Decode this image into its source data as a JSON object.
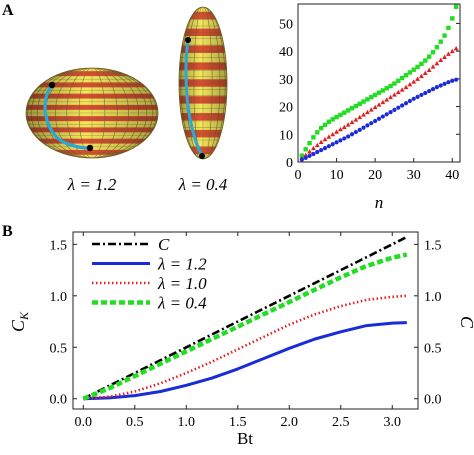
{
  "panels": {
    "a_label": "A",
    "b_label": "B"
  },
  "spheroids": [
    {
      "label": "λ = 1.2",
      "lambda": 1.2
    },
    {
      "label": "λ = 0.4",
      "lambda": 0.4
    }
  ],
  "colors": {
    "body_yellow": "#f2e65c",
    "stripe_red": "#d8342c",
    "path_cyan": "#2aa8d8",
    "series_green": "#22dd22",
    "series_red": "#e02020",
    "series_blue": "#1a2bd8",
    "series_black": "#000000"
  },
  "chart_data": [
    {
      "type": "scatter",
      "xlabel": "n",
      "ylabel": "",
      "xlim": [
        0,
        42
      ],
      "ylim": [
        0,
        57
      ],
      "xticks": [
        0,
        10,
        20,
        30,
        40
      ],
      "yticks": [
        0,
        10,
        20,
        30,
        40,
        50
      ],
      "grid": false,
      "x": [
        1,
        2,
        3,
        4,
        5,
        6,
        7,
        8,
        9,
        10,
        11,
        12,
        13,
        14,
        15,
        16,
        17,
        18,
        19,
        20,
        21,
        22,
        23,
        24,
        25,
        26,
        27,
        28,
        29,
        30,
        31,
        32,
        33,
        34,
        35,
        36,
        37,
        38,
        39,
        40,
        41
      ],
      "series": [
        {
          "color": "#22dd22",
          "values": [
            2.3,
            4.6,
            6.8,
            8.9,
            10.7,
            12.2,
            13.4,
            14.5,
            15.4,
            16.2,
            17.0,
            17.8,
            18.6,
            19.4,
            20.2,
            21.0,
            21.8,
            22.6,
            23.4,
            24.2,
            25.0,
            25.8,
            26.6,
            27.4,
            28.3,
            29.3,
            30.3,
            31.3,
            32.3,
            33.3,
            34.3,
            35.4,
            36.6,
            38.0,
            39.6,
            41.4,
            43.4,
            45.6,
            48.4,
            51.8,
            56.0
          ]
        },
        {
          "color": "#e02020",
          "values": [
            1.3,
            2.5,
            3.8,
            5.0,
            6.1,
            7.2,
            8.2,
            9.1,
            10.0,
            10.9,
            11.8,
            12.6,
            13.5,
            14.4,
            15.3,
            16.2,
            17.1,
            18.0,
            18.9,
            19.8,
            20.7,
            21.6,
            22.5,
            23.4,
            24.3,
            25.2,
            26.1,
            27.0,
            28.0,
            29.0,
            30.0,
            31.0,
            32.1,
            33.2,
            34.4,
            35.6,
            36.8,
            37.9,
            39.0,
            40.0,
            41.0
          ]
        },
        {
          "color": "#1a2bd8",
          "values": [
            0.9,
            1.5,
            2.2,
            2.9,
            3.6,
            4.3,
            5.0,
            5.7,
            6.4,
            7.1,
            7.8,
            8.5,
            9.2,
            10.0,
            10.8,
            11.6,
            12.4,
            13.2,
            14.0,
            14.8,
            15.6,
            16.4,
            17.2,
            18.0,
            18.8,
            19.6,
            20.4,
            21.2,
            22.0,
            22.8,
            23.5,
            24.2,
            24.9,
            25.6,
            26.3,
            27.0,
            27.6,
            28.2,
            28.8,
            29.3,
            29.7
          ]
        }
      ]
    },
    {
      "type": "line",
      "xlabel": "Bt",
      "ylabel": "C_K",
      "ylabel_right": "C",
      "xlim": [
        -0.1,
        3.25
      ],
      "ylim": [
        -0.1,
        1.62
      ],
      "xticks": [
        "0.0",
        "0.5",
        "1.0",
        "1.5",
        "2.0",
        "2.5",
        "3.0"
      ],
      "yticks": [
        "0.0",
        "0.5",
        "1.0",
        "1.5"
      ],
      "grid": false,
      "legend_position": "top-left",
      "series": [
        {
          "name": "C",
          "color": "#000000",
          "style": "dash-dot",
          "x": [
            0,
            0.5,
            1.0,
            1.5,
            2.0,
            2.5,
            3.1416
          ],
          "values": [
            0,
            0.25,
            0.5,
            0.75,
            1.0,
            1.25,
            1.571
          ]
        },
        {
          "name": "λ = 1.2",
          "color": "#1a2bd8",
          "style": "solid",
          "x": [
            0,
            0.25,
            0.5,
            0.75,
            1.0,
            1.25,
            1.5,
            1.75,
            2.0,
            2.25,
            2.5,
            2.75,
            3.0,
            3.1416
          ],
          "values": [
            0,
            0.008,
            0.03,
            0.07,
            0.13,
            0.2,
            0.29,
            0.39,
            0.49,
            0.58,
            0.65,
            0.71,
            0.735,
            0.74
          ]
        },
        {
          "name": "λ = 1.0",
          "color": "#e02020",
          "style": "dotted",
          "x": [
            0,
            0.25,
            0.5,
            0.75,
            1.0,
            1.25,
            1.5,
            1.75,
            2.0,
            2.25,
            2.5,
            2.75,
            3.0,
            3.1416
          ],
          "values": [
            0,
            0.02,
            0.07,
            0.15,
            0.25,
            0.36,
            0.48,
            0.6,
            0.72,
            0.82,
            0.9,
            0.96,
            0.99,
            1.0
          ]
        },
        {
          "name": "λ = 0.4",
          "color": "#22dd22",
          "style": "dashed",
          "x": [
            0,
            0.25,
            0.5,
            0.75,
            1.0,
            1.25,
            1.5,
            1.75,
            2.0,
            2.25,
            2.5,
            2.75,
            3.0,
            3.1416
          ],
          "values": [
            0,
            0.1,
            0.22,
            0.34,
            0.46,
            0.58,
            0.7,
            0.82,
            0.94,
            1.06,
            1.18,
            1.29,
            1.37,
            1.4
          ]
        }
      ]
    }
  ]
}
